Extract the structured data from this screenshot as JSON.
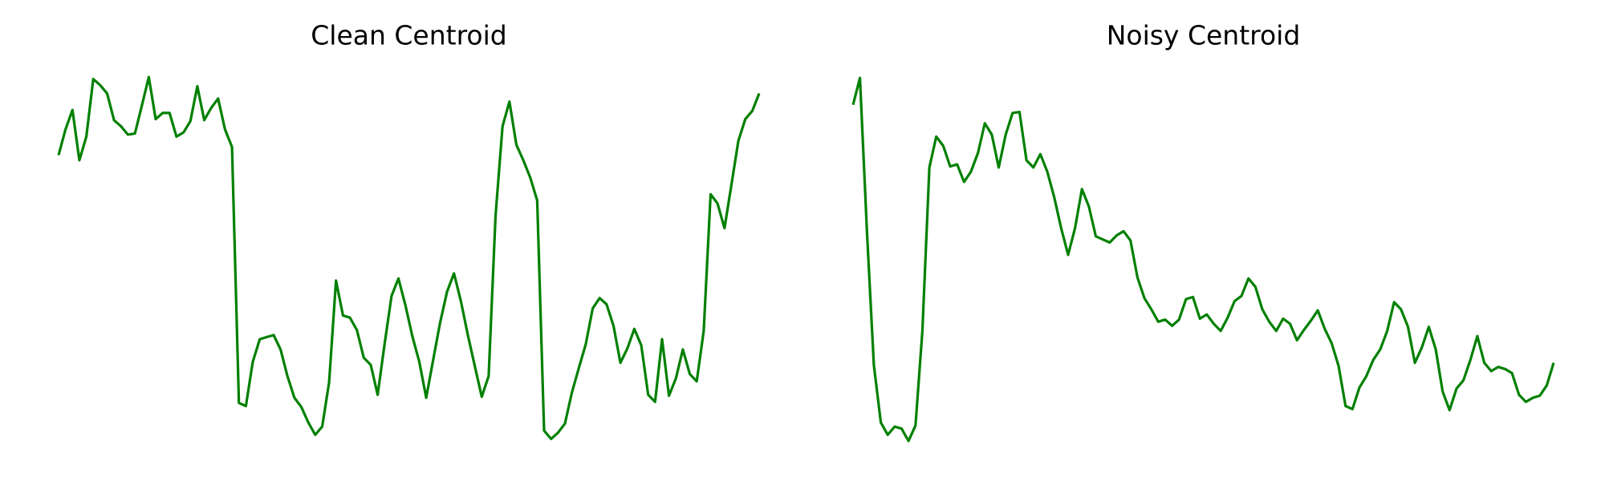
{
  "chart_data": [
    {
      "type": "line",
      "title": "Clean Centroid",
      "color": "#008000",
      "xlim": [
        0,
        101
      ],
      "ylim": [
        0,
        400
      ],
      "x": [
        0,
        1,
        2,
        3,
        4,
        5,
        6,
        7,
        8,
        9,
        10,
        11,
        12,
        13,
        14,
        15,
        16,
        17,
        18,
        19,
        20,
        21,
        22,
        23,
        24,
        25,
        26,
        27,
        28,
        29,
        30,
        31,
        32,
        33,
        34,
        35,
        36,
        37,
        38,
        39,
        40,
        41,
        42,
        43,
        44,
        45,
        46,
        47,
        48,
        49,
        50,
        51,
        52,
        53,
        54,
        55,
        56,
        57,
        58,
        59,
        60,
        61,
        62,
        63,
        64,
        65,
        66,
        67,
        68,
        69,
        70,
        71,
        72,
        73,
        74,
        75,
        76,
        77,
        78,
        79,
        80,
        81,
        82,
        83,
        84,
        85,
        86,
        87,
        88,
        89,
        90,
        91,
        92,
        93,
        94,
        95,
        96,
        97,
        98,
        99,
        100,
        101
      ],
      "values": [
        299,
        324,
        343,
        294,
        317,
        373,
        367,
        359,
        333,
        327,
        319,
        320,
        347,
        375,
        334,
        340,
        340,
        317,
        321,
        332,
        366,
        333,
        345,
        354,
        324,
        307,
        58,
        55,
        98,
        120,
        122,
        124,
        110,
        84,
        63,
        54,
        39,
        27,
        35,
        78,
        177,
        143,
        141,
        129,
        102,
        95,
        66,
        115,
        162,
        179,
        153,
        123,
        98,
        63,
        100,
        136,
        166,
        184,
        157,
        124,
        94,
        64,
        84,
        240,
        327,
        351,
        309,
        294,
        277,
        255,
        31,
        23,
        29,
        38,
        68,
        92,
        115,
        150,
        160,
        154,
        133,
        97,
        111,
        130,
        114,
        66,
        59,
        120,
        65,
        82,
        110,
        86,
        79,
        128,
        261,
        252,
        228,
        270,
        313,
        334,
        342,
        359
      ]
    },
    {
      "type": "line",
      "title": "Noisy Centroid",
      "color": "#008000",
      "xlim": [
        0,
        101
      ],
      "ylim": [
        0,
        400
      ],
      "x": [
        0,
        1,
        2,
        3,
        4,
        5,
        6,
        7,
        8,
        9,
        10,
        11,
        12,
        13,
        14,
        15,
        16,
        17,
        18,
        19,
        20,
        21,
        22,
        23,
        24,
        25,
        26,
        27,
        28,
        29,
        30,
        31,
        32,
        33,
        34,
        35,
        36,
        37,
        38,
        39,
        40,
        41,
        42,
        43,
        44,
        45,
        46,
        47,
        48,
        49,
        50,
        51,
        52,
        53,
        54,
        55,
        56,
        57,
        58,
        59,
        60,
        61,
        62,
        63,
        64,
        65,
        66,
        67,
        68,
        69,
        70,
        71,
        72,
        73,
        74,
        75,
        76,
        77,
        78,
        79,
        80,
        81,
        82,
        83,
        84,
        85,
        86,
        87,
        88,
        89,
        90,
        91,
        92,
        93,
        94,
        95,
        96,
        97,
        98,
        99,
        100,
        101
      ],
      "values": [
        348,
        374,
        225,
        95,
        39,
        27,
        35,
        33,
        21,
        36,
        128,
        287,
        317,
        308,
        288,
        290,
        273,
        283,
        301,
        330,
        319,
        287,
        319,
        340,
        341,
        294,
        287,
        300,
        283,
        258,
        228,
        202,
        228,
        266,
        249,
        220,
        217,
        214,
        221,
        225,
        216,
        180,
        160,
        149,
        137,
        139,
        133,
        139,
        159,
        161,
        140,
        144,
        135,
        128,
        141,
        157,
        162,
        179,
        171,
        149,
        137,
        128,
        140,
        135,
        119,
        129,
        138,
        148,
        130,
        116,
        94,
        55,
        52,
        73,
        84,
        100,
        110,
        128,
        156,
        149,
        132,
        97,
        112,
        132,
        110,
        69,
        51,
        72,
        80,
        100,
        123,
        97,
        89,
        93,
        91,
        87,
        66,
        59,
        63,
        65,
        75,
        97
      ]
    }
  ]
}
